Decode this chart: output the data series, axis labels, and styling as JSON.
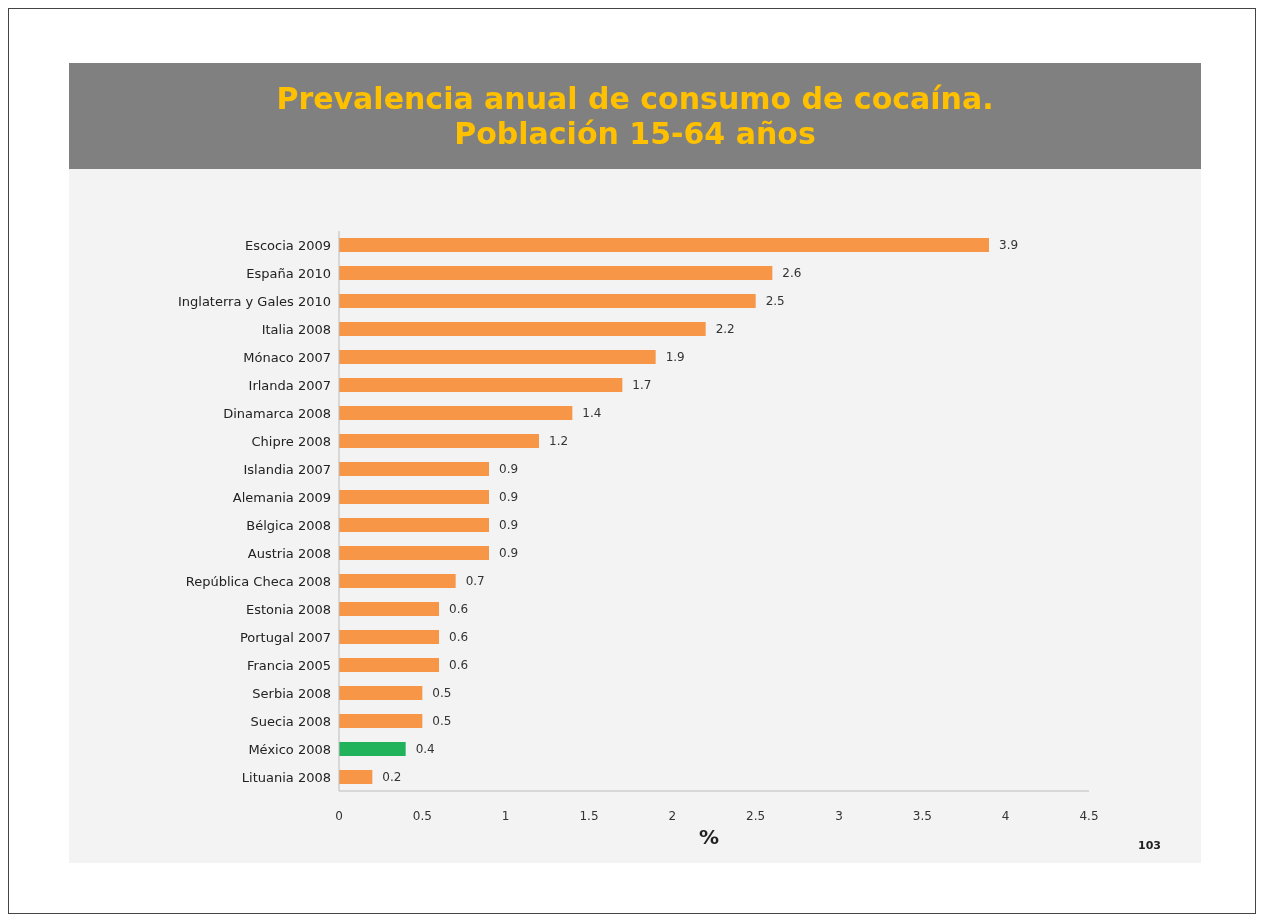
{
  "chart_data": {
    "type": "bar",
    "orientation": "horizontal",
    "title": "Prevalencia anual de consumo de cocaína.\nPoblación 15-64 años",
    "xlabel": "%",
    "categories": [
      "Escocia 2009",
      "España 2010",
      "Inglaterra y Gales 2010",
      "Italia 2008",
      "Mónaco 2007",
      "Irlanda 2007",
      "Dinamarca 2008",
      "Chipre 2008",
      "Islandia 2007",
      "Alemania 2009",
      "Bélgica 2008",
      "Austria 2008",
      "República Checa 2008",
      "Estonia 2008",
      "Portugal 2007",
      "Francia 2005",
      "Serbia 2008",
      "Suecia 2008",
      "México 2008",
      "Lituania 2008"
    ],
    "values": [
      3.9,
      2.6,
      2.5,
      2.2,
      1.9,
      1.7,
      1.4,
      1.2,
      0.9,
      0.9,
      0.9,
      0.9,
      0.7,
      0.6,
      0.6,
      0.6,
      0.5,
      0.5,
      0.4,
      0.2
    ],
    "colors": [
      "#f79646",
      "#f79646",
      "#f79646",
      "#f79646",
      "#f79646",
      "#f79646",
      "#f79646",
      "#f79646",
      "#f79646",
      "#f79646",
      "#f79646",
      "#f79646",
      "#f79646",
      "#f79646",
      "#f79646",
      "#f79646",
      "#f79646",
      "#f79646",
      "#21b25c",
      "#f79646"
    ],
    "xlim": [
      0,
      4.5
    ],
    "xticks": [
      0,
      0.5,
      1,
      1.5,
      2,
      2.5,
      3,
      3.5,
      4,
      4.5
    ],
    "grid": false,
    "data_labels": true,
    "annotations": [
      "103"
    ]
  }
}
